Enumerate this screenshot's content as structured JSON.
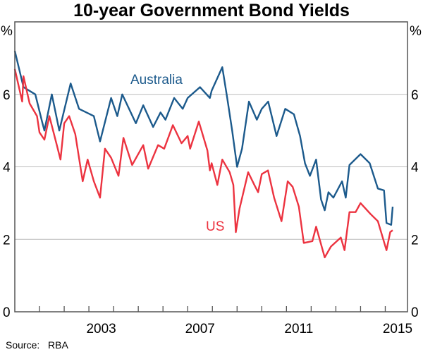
{
  "chart_data": {
    "type": "line",
    "title": "10-year Government Bond Yields",
    "ylabel_left": "%",
    "ylabel_right": "%",
    "ylim": [
      0,
      8
    ],
    "xlim": [
      2000.0,
      2015.9
    ],
    "yticks": [
      "0",
      "2",
      "4",
      "6"
    ],
    "xticks": [
      "2003",
      "2007",
      "2011",
      "2015"
    ],
    "grid": true,
    "series": [
      {
        "name": "Australia",
        "color": "#1c5a8c",
        "x": [
          2000.0,
          2000.35,
          2000.83,
          2001.1,
          2001.2,
          2001.5,
          2001.8,
          2002.26,
          2002.6,
          2003.2,
          2003.45,
          2003.9,
          2004.15,
          2004.35,
          2004.9,
          2005.2,
          2005.6,
          2005.9,
          2006.1,
          2006.45,
          2006.8,
          2007.0,
          2007.5,
          2007.9,
          2007.97,
          2008.4,
          2008.6,
          2008.8,
          2009.0,
          2009.2,
          2009.48,
          2009.8,
          2010.0,
          2010.26,
          2010.6,
          2010.95,
          2011.3,
          2011.55,
          2011.75,
          2011.95,
          2012.2,
          2012.4,
          2012.55,
          2012.7,
          2012.9,
          2013.25,
          2013.4,
          2013.55,
          2014.0,
          2014.37,
          2014.7,
          2014.95,
          2015.05,
          2015.24,
          2015.3
        ],
        "y": [
          7.2,
          6.2,
          6.0,
          5.26,
          5.0,
          6.0,
          5.0,
          6.3,
          5.6,
          5.4,
          4.7,
          5.9,
          5.4,
          6.0,
          5.2,
          5.7,
          5.1,
          5.5,
          5.3,
          5.9,
          5.6,
          5.9,
          6.2,
          5.9,
          6.1,
          6.75,
          5.9,
          5.0,
          4.0,
          4.5,
          5.8,
          5.3,
          5.6,
          5.8,
          4.85,
          5.6,
          5.45,
          4.85,
          4.1,
          3.75,
          4.2,
          3.1,
          2.8,
          3.3,
          3.15,
          3.6,
          3.15,
          4.05,
          4.35,
          4.1,
          3.4,
          3.35,
          2.45,
          2.4,
          2.9
        ]
      },
      {
        "name": "US",
        "color": "#ec3340",
        "x": [
          2000.0,
          2000.3,
          2000.35,
          2000.6,
          2000.9,
          2001.0,
          2001.2,
          2001.4,
          2001.7,
          2001.85,
          2002.0,
          2002.2,
          2002.45,
          2002.75,
          2002.95,
          2003.2,
          2003.45,
          2003.65,
          2003.9,
          2004.2,
          2004.4,
          2004.75,
          2005.2,
          2005.4,
          2005.8,
          2006.05,
          2006.4,
          2006.75,
          2007.0,
          2007.1,
          2007.45,
          2007.8,
          2007.9,
          2007.97,
          2008.2,
          2008.4,
          2008.7,
          2008.85,
          2008.95,
          2009.1,
          2009.45,
          2009.7,
          2009.85,
          2010.0,
          2010.25,
          2010.5,
          2010.8,
          2011.05,
          2011.25,
          2011.5,
          2011.7,
          2012.05,
          2012.2,
          2012.55,
          2012.8,
          2013.2,
          2013.35,
          2013.55,
          2013.8,
          2014.0,
          2014.4,
          2014.7,
          2015.05,
          2015.2,
          2015.3
        ],
        "y": [
          6.7,
          5.8,
          6.5,
          5.75,
          5.4,
          4.95,
          4.75,
          5.4,
          4.6,
          4.2,
          5.2,
          5.4,
          4.9,
          3.6,
          4.2,
          3.6,
          3.15,
          4.5,
          4.25,
          3.75,
          4.8,
          4.05,
          4.6,
          3.95,
          4.6,
          4.5,
          5.15,
          4.65,
          4.85,
          4.5,
          5.25,
          4.45,
          3.9,
          4.1,
          3.5,
          4.2,
          3.85,
          3.5,
          2.2,
          2.85,
          3.85,
          3.5,
          3.3,
          3.8,
          3.9,
          3.15,
          2.5,
          3.6,
          3.45,
          2.9,
          1.9,
          1.95,
          2.35,
          1.5,
          1.8,
          2.05,
          1.7,
          2.75,
          2.75,
          3.0,
          2.7,
          2.5,
          1.7,
          2.2,
          2.25
        ]
      }
    ],
    "annotations": [
      "Australia",
      "US"
    ],
    "source_label": "Source:",
    "source_value": "RBA"
  }
}
